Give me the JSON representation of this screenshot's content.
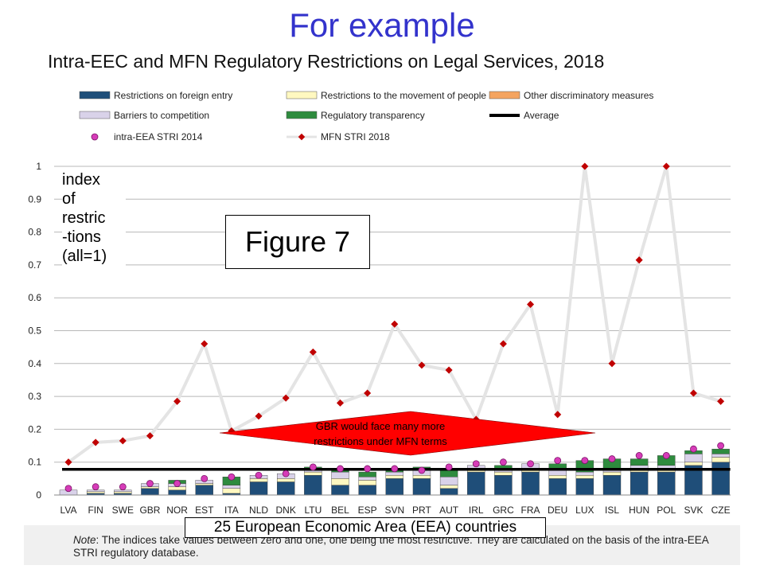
{
  "slide_title": "For example",
  "chart_title": "Intra-EEC and MFN Regulatory Restrictions on Legal Services, 2018",
  "figure_label": "Figure 7",
  "ylabel_lines": [
    "index",
    "of",
    "restric",
    "-tions",
    "(all=1)"
  ],
  "callout_eea": "25 European Economic Area (EEA) countries",
  "arrow_text_lines": [
    "GBR would face many more",
    "restrictions under MFN terms"
  ],
  "note_label": "Note",
  "note_text": ": The indices take values between zero and one, one being the most restrictive. They are calculated on the basis of the intra-EEA STRI regulatory database.",
  "legend": [
    {
      "label": "Restrictions on foreign entry",
      "kind": "bar",
      "color": "#1f4e79"
    },
    {
      "label": "Restrictions to the movement of people",
      "kind": "bar",
      "color": "#fff8c0"
    },
    {
      "label": "Other discriminatory measures",
      "kind": "bar",
      "color": "#f4a460"
    },
    {
      "label": "Barriers to competition",
      "kind": "bar",
      "color": "#d9d2e9"
    },
    {
      "label": "Regulatory transparency",
      "kind": "bar",
      "color": "#2e8b3e"
    },
    {
      "label": "Average",
      "kind": "line",
      "color": "#000000"
    },
    {
      "label": "intra-EEA STRI 2014",
      "kind": "dot",
      "color": "#d63cb8"
    },
    {
      "label": "MFN STRI 2018",
      "kind": "diamond",
      "color": "#c00000"
    }
  ],
  "colors": {
    "foreign_entry": "#1f4e79",
    "movement": "#fff8c0",
    "other_disc": "#f4a460",
    "competition": "#d9d2e9",
    "transparency": "#2e8b3e",
    "mfn_line": "#e4e4e4",
    "mfn_marker": "#c00000",
    "dot": "#d63cb8",
    "arrow": "#ff0000"
  },
  "chart_data": {
    "type": "bar",
    "stacked": true,
    "categories": [
      "LVA",
      "FIN",
      "SWE",
      "GBR",
      "NOR",
      "EST",
      "ITA",
      "NLD",
      "DNK",
      "LTU",
      "BEL",
      "ESP",
      "SVN",
      "PRT",
      "AUT",
      "IRL",
      "GRC",
      "FRA",
      "DEU",
      "LUX",
      "ISL",
      "HUN",
      "POL",
      "SVK",
      "CZE"
    ],
    "ylim": [
      0,
      1
    ],
    "yticks": [
      "0",
      "0.1",
      "0.2",
      "0.3",
      "0.4",
      "0.5",
      "0.6",
      "0.7",
      "0.8",
      "0.9",
      "1"
    ],
    "grid": true,
    "series": [
      {
        "name": "Restrictions on foreign entry",
        "key": "foreign_entry",
        "values": [
          0,
          0.005,
          0.005,
          0.02,
          0.015,
          0.03,
          0.005,
          0.04,
          0.04,
          0.06,
          0.03,
          0.03,
          0.05,
          0.05,
          0.02,
          0.07,
          0.06,
          0.07,
          0.05,
          0.05,
          0.06,
          0.07,
          0.07,
          0.09,
          0.1
        ]
      },
      {
        "name": "Restrictions to the movement of people",
        "key": "movement",
        "values": [
          0,
          0.005,
          0.005,
          0.005,
          0.01,
          0.005,
          0.015,
          0.01,
          0.01,
          0.01,
          0.02,
          0.015,
          0.01,
          0.01,
          0.01,
          0.01,
          0.01,
          0.01,
          0.01,
          0.01,
          0.01,
          0.01,
          0.01,
          0.01,
          0.015
        ]
      },
      {
        "name": "Other discriminatory measures",
        "key": "other_disc",
        "values": [
          0,
          0,
          0,
          0,
          0,
          0,
          0,
          0,
          0,
          0,
          0,
          0,
          0,
          0,
          0,
          0,
          0,
          0,
          0,
          0,
          0,
          0,
          0,
          0,
          0
        ]
      },
      {
        "name": "Barriers to competition",
        "key": "competition",
        "values": [
          0.015,
          0.005,
          0.005,
          0.01,
          0.01,
          0.01,
          0.01,
          0.01,
          0.015,
          0.01,
          0.02,
          0.01,
          0.01,
          0.015,
          0.025,
          0.01,
          0.01,
          0.015,
          0.015,
          0.01,
          0.01,
          0.01,
          0.01,
          0.025,
          0.01
        ]
      },
      {
        "name": "Regulatory transparency",
        "key": "transparency",
        "values": [
          0,
          0,
          0,
          0,
          0.01,
          0,
          0.025,
          0,
          0,
          0.005,
          0.01,
          0.015,
          0.005,
          0.01,
          0.025,
          0,
          0.01,
          0,
          0.02,
          0.035,
          0.03,
          0.02,
          0.03,
          0.01,
          0.015
        ]
      }
    ],
    "average": 0.078,
    "intra_eea_stri_2014": [
      0.02,
      0.025,
      0.025,
      0.035,
      0.035,
      0.05,
      0.055,
      0.06,
      0.065,
      0.085,
      0.08,
      0.08,
      0.08,
      0.075,
      0.085,
      0.095,
      0.1,
      0.095,
      0.105,
      0.105,
      0.11,
      0.12,
      0.12,
      0.14,
      0.15
    ],
    "mfn_stri_2018": [
      0.1,
      0.16,
      0.165,
      0.18,
      0.285,
      0.46,
      0.195,
      0.24,
      0.295,
      0.435,
      0.28,
      0.31,
      0.52,
      0.395,
      0.38,
      0.23,
      0.46,
      0.58,
      0.245,
      1.0,
      0.4,
      0.715,
      1.0,
      0.31,
      0.285
    ]
  }
}
